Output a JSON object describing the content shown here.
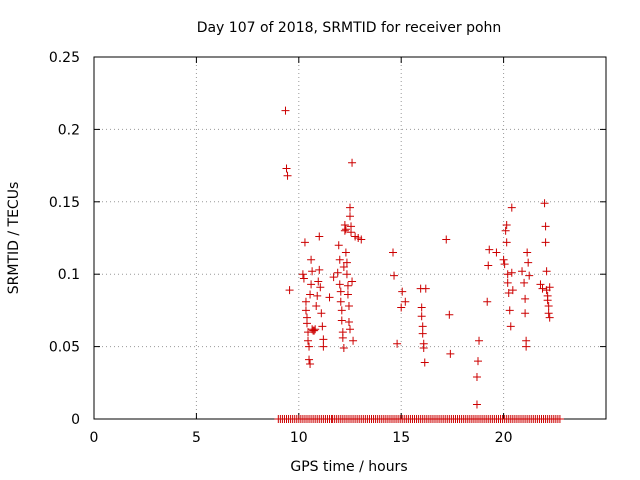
{
  "chart_data": {
    "type": "scatter",
    "title": "Day 107 of 2018, SRMTID for receiver pohn",
    "xlabel": "GPS time / hours",
    "ylabel": "SRMTID / TECUs",
    "xlim": [
      0,
      25
    ],
    "ylim": [
      0,
      0.25
    ],
    "xticks": [
      0,
      5,
      10,
      15,
      20
    ],
    "xtick_labels": [
      "0",
      "5",
      "10",
      "15",
      "20"
    ],
    "yticks": [
      0,
      0.05,
      0.1,
      0.15,
      0.2,
      0.25
    ],
    "ytick_labels": [
      "0",
      "0.05",
      "0.1",
      "0.15",
      "0.2",
      "0.25"
    ],
    "grid": true,
    "marker": "plus",
    "series": [
      {
        "name": "SRMTID",
        "color": "#cc0000",
        "points": [
          [
            9.35,
            0.213
          ],
          [
            9.4,
            0.173
          ],
          [
            9.45,
            0.168
          ],
          [
            9.55,
            0.089
          ],
          [
            10.2,
            0.1
          ],
          [
            10.25,
            0.097
          ],
          [
            10.3,
            0.122
          ],
          [
            10.35,
            0.081
          ],
          [
            10.35,
            0.075
          ],
          [
            10.4,
            0.07
          ],
          [
            10.4,
            0.066
          ],
          [
            10.45,
            0.06
          ],
          [
            10.45,
            0.054
          ],
          [
            10.5,
            0.05
          ],
          [
            10.5,
            0.041
          ],
          [
            10.55,
            0.038
          ],
          [
            10.55,
            0.086
          ],
          [
            10.6,
            0.093
          ],
          [
            10.6,
            0.11
          ],
          [
            10.65,
            0.102
          ],
          [
            10.65,
            0.062
          ],
          [
            10.7,
            0.061
          ],
          [
            10.75,
            0.061
          ],
          [
            10.8,
            0.062
          ],
          [
            10.85,
            0.078
          ],
          [
            10.9,
            0.085
          ],
          [
            10.95,
            0.095
          ],
          [
            11.0,
            0.126
          ],
          [
            11.0,
            0.103
          ],
          [
            11.05,
            0.091
          ],
          [
            11.1,
            0.073
          ],
          [
            11.15,
            0.064
          ],
          [
            11.2,
            0.055
          ],
          [
            11.2,
            0.05
          ],
          [
            11.5,
            0.084
          ],
          [
            11.7,
            0.098
          ],
          [
            11.9,
            0.101
          ],
          [
            11.95,
            0.12
          ],
          [
            12.0,
            0.11
          ],
          [
            12.0,
            0.093
          ],
          [
            12.05,
            0.088
          ],
          [
            12.05,
            0.081
          ],
          [
            12.1,
            0.075
          ],
          [
            12.1,
            0.068
          ],
          [
            12.15,
            0.06
          ],
          [
            12.15,
            0.056
          ],
          [
            12.2,
            0.049
          ],
          [
            12.2,
            0.105
          ],
          [
            12.25,
            0.13
          ],
          [
            12.25,
            0.134
          ],
          [
            12.3,
            0.131
          ],
          [
            12.3,
            0.115
          ],
          [
            12.35,
            0.108
          ],
          [
            12.35,
            0.1
          ],
          [
            12.4,
            0.092
          ],
          [
            12.4,
            0.086
          ],
          [
            12.45,
            0.078
          ],
          [
            12.45,
            0.067
          ],
          [
            12.5,
            0.062
          ],
          [
            12.5,
            0.146
          ],
          [
            12.5,
            0.14
          ],
          [
            12.55,
            0.133
          ],
          [
            12.55,
            0.129
          ],
          [
            12.6,
            0.177
          ],
          [
            12.6,
            0.095
          ],
          [
            12.65,
            0.054
          ],
          [
            12.75,
            0.126
          ],
          [
            12.9,
            0.125
          ],
          [
            13.05,
            0.124
          ],
          [
            14.6,
            0.115
          ],
          [
            14.65,
            0.099
          ],
          [
            14.8,
            0.052
          ],
          [
            15.0,
            0.077
          ],
          [
            15.05,
            0.088
          ],
          [
            15.2,
            0.081
          ],
          [
            15.95,
            0.09
          ],
          [
            16.0,
            0.077
          ],
          [
            16.0,
            0.071
          ],
          [
            16.05,
            0.064
          ],
          [
            16.05,
            0.059
          ],
          [
            16.1,
            0.052
          ],
          [
            16.1,
            0.049
          ],
          [
            16.15,
            0.039
          ],
          [
            16.2,
            0.09
          ],
          [
            17.2,
            0.124
          ],
          [
            17.35,
            0.072
          ],
          [
            17.4,
            0.045
          ],
          [
            18.7,
            0.01
          ],
          [
            18.7,
            0.029
          ],
          [
            18.75,
            0.04
          ],
          [
            18.8,
            0.054
          ],
          [
            19.2,
            0.081
          ],
          [
            19.25,
            0.106
          ],
          [
            19.3,
            0.117
          ],
          [
            19.65,
            0.115
          ],
          [
            20.0,
            0.11
          ],
          [
            20.05,
            0.107
          ],
          [
            20.1,
            0.13
          ],
          [
            20.15,
            0.134
          ],
          [
            20.15,
            0.122
          ],
          [
            20.2,
            0.1
          ],
          [
            20.2,
            0.094
          ],
          [
            20.25,
            0.087
          ],
          [
            20.3,
            0.075
          ],
          [
            20.35,
            0.064
          ],
          [
            20.4,
            0.146
          ],
          [
            20.4,
            0.101
          ],
          [
            20.45,
            0.089
          ],
          [
            20.9,
            0.102
          ],
          [
            21.0,
            0.094
          ],
          [
            21.05,
            0.083
          ],
          [
            21.05,
            0.073
          ],
          [
            21.1,
            0.054
          ],
          [
            21.1,
            0.05
          ],
          [
            21.15,
            0.115
          ],
          [
            21.2,
            0.108
          ],
          [
            21.25,
            0.099
          ],
          [
            21.8,
            0.093
          ],
          [
            21.9,
            0.09
          ],
          [
            22.0,
            0.149
          ],
          [
            22.05,
            0.133
          ],
          [
            22.05,
            0.122
          ],
          [
            22.1,
            0.102
          ],
          [
            22.1,
            0.089
          ],
          [
            22.15,
            0.085
          ],
          [
            22.15,
            0.082
          ],
          [
            22.2,
            0.078
          ],
          [
            22.2,
            0.073
          ],
          [
            22.25,
            0.07
          ],
          [
            22.25,
            0.091
          ]
        ]
      }
    ],
    "baseline": {
      "y": 0,
      "segments": [
        [
          9.0,
          11.6
        ],
        [
          11.65,
          22.8
        ]
      ],
      "step": 0.1
    }
  }
}
